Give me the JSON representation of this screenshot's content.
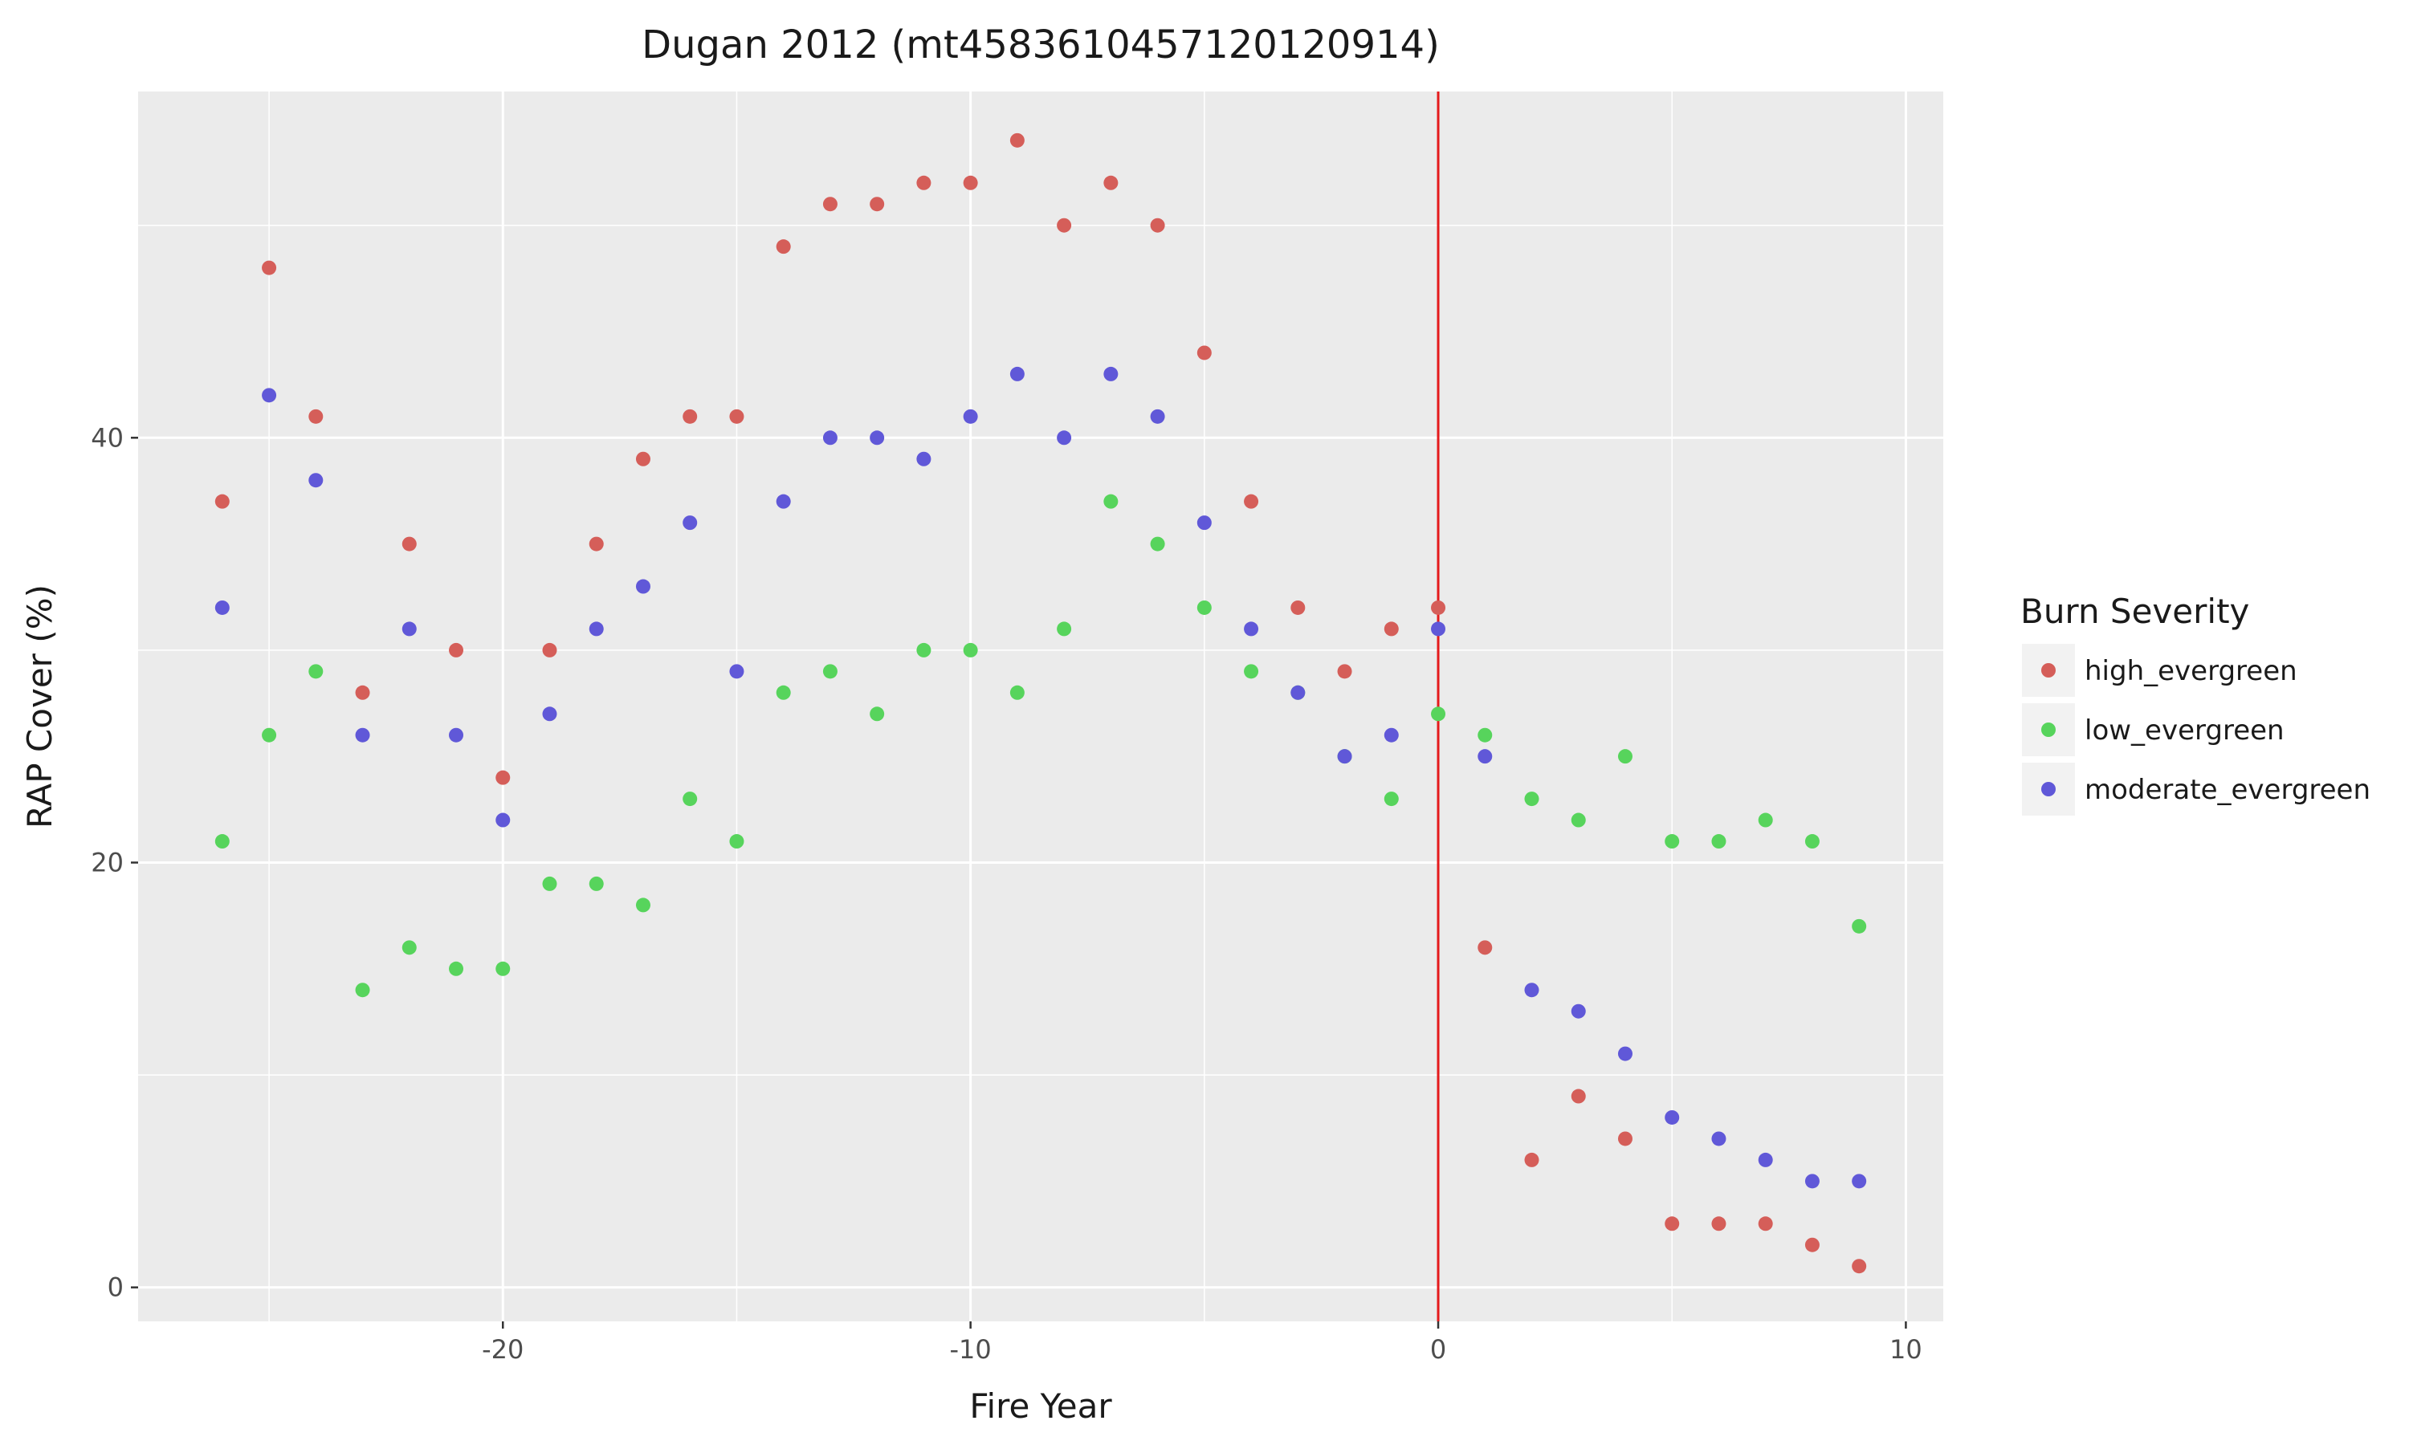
{
  "chart_data": {
    "type": "scatter",
    "title": "Dugan 2012 (mt4583610457120120914)",
    "xlabel": "Fire Year",
    "ylabel": "RAP Cover (%)",
    "xlim": [
      -27.8,
      10.8
    ],
    "ylim": [
      -1.6,
      56.3
    ],
    "x_ticks": [
      -20,
      -10,
      0,
      10
    ],
    "x_tick_labels": [
      "-20",
      "-10",
      "0",
      "10"
    ],
    "y_ticks": [
      0,
      20,
      40
    ],
    "y_tick_labels": [
      "0",
      "20",
      "40"
    ],
    "grid": true,
    "legend": {
      "title": "Burn Severity",
      "position": "right"
    },
    "vline": {
      "x": 0,
      "color": "#e41a1c"
    },
    "series": [
      {
        "name": "high_evergreen",
        "color": "#d55e59",
        "x": [
          -26,
          -25,
          -24,
          -23,
          -22,
          -21,
          -20,
          -19,
          -18,
          -17,
          -16,
          -15,
          -14,
          -13,
          -12,
          -11,
          -10,
          -9,
          -8,
          -7,
          -6,
          -5,
          -4,
          -3,
          -2,
          -1,
          0,
          1,
          2,
          3,
          4,
          5,
          6,
          7,
          8,
          9
        ],
        "y": [
          37,
          48,
          41,
          28,
          35,
          30,
          24,
          30,
          35,
          39,
          41,
          41,
          49,
          51,
          51,
          52,
          52,
          54,
          50,
          52,
          50,
          44,
          37,
          32,
          29,
          31,
          32,
          16,
          6,
          9,
          7,
          3,
          3,
          3,
          2,
          1
        ]
      },
      {
        "name": "low_evergreen",
        "color": "#57d45c",
        "x": [
          -26,
          -25,
          -24,
          -23,
          -22,
          -21,
          -20,
          -19,
          -18,
          -17,
          -16,
          -15,
          -14,
          -13,
          -12,
          -11,
          -10,
          -9,
          -8,
          -7,
          -6,
          -5,
          -4,
          -3,
          -2,
          -1,
          0,
          1,
          2,
          3,
          4,
          5,
          6,
          7,
          8,
          9
        ],
        "y": [
          21,
          26,
          29,
          14,
          16,
          15,
          15,
          19,
          19,
          18,
          23,
          21,
          28,
          29,
          27,
          30,
          30,
          28,
          31,
          37,
          35,
          32,
          29,
          28,
          25,
          23,
          27,
          26,
          23,
          22,
          25,
          21,
          21,
          22,
          21,
          17
        ]
      },
      {
        "name": "moderate_evergreen",
        "color": "#6058d8",
        "x": [
          -26,
          -25,
          -24,
          -23,
          -22,
          -21,
          -20,
          -19,
          -18,
          -17,
          -16,
          -15,
          -14,
          -13,
          -12,
          -11,
          -10,
          -9,
          -8,
          -7,
          -6,
          -5,
          -4,
          -3,
          -2,
          -1,
          0,
          1,
          2,
          3,
          4,
          5,
          6,
          7,
          8,
          9
        ],
        "y": [
          32,
          42,
          38,
          26,
          31,
          26,
          22,
          27,
          31,
          33,
          36,
          29,
          37,
          40,
          40,
          39,
          41,
          43,
          40,
          43,
          41,
          36,
          31,
          28,
          25,
          26,
          31,
          25,
          14,
          13,
          11,
          8,
          7,
          6,
          5,
          5
        ]
      }
    ]
  }
}
